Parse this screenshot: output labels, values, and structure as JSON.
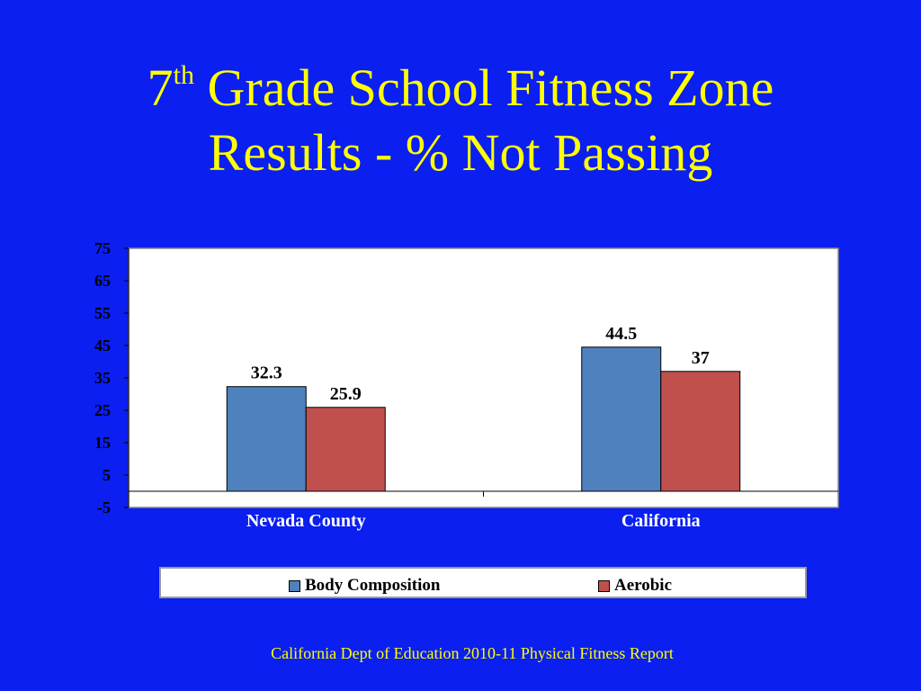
{
  "slide": {
    "title_number": "7",
    "title_superscript": "th",
    "title_rest": " Grade School Fitness Zone",
    "title_line2": "Results - % Not Passing",
    "source": "California Dept of Education 2010-11 Physical Fitness Report"
  },
  "chart_data": {
    "type": "bar",
    "categories": [
      "Nevada County",
      "California"
    ],
    "series": [
      {
        "name": "Body Composition",
        "values": [
          32.3,
          44.5
        ],
        "color": "#4f81bd"
      },
      {
        "name": "Aerobic",
        "values": [
          25.9,
          37
        ],
        "color": "#c0504d"
      }
    ],
    "data_labels": [
      [
        "32.3",
        "44.5"
      ],
      [
        "25.9",
        "37"
      ]
    ],
    "ylim": [
      -5,
      75
    ],
    "yticks": [
      75,
      65,
      55,
      45,
      35,
      25,
      15,
      5,
      -5
    ],
    "grid": false,
    "legend_position": "bottom",
    "plot_background": "#ffffff"
  }
}
